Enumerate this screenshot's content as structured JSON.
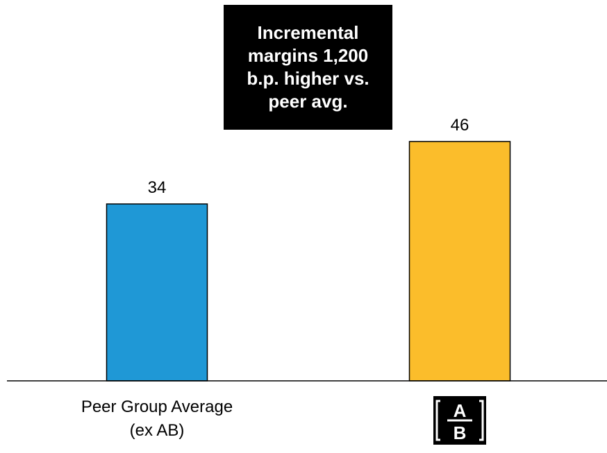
{
  "chart_data": {
    "type": "bar",
    "categories": [
      "Peer Group Average\n(ex AB)",
      "AB"
    ],
    "values": [
      34,
      46
    ],
    "data_labels": [
      "34",
      "46"
    ],
    "colors": [
      "#1f98d6",
      "#fbbd2b"
    ],
    "title": "",
    "xlabel": "",
    "ylabel": "",
    "ylim": [
      0,
      50
    ],
    "grid": false,
    "legend": "none"
  },
  "categories_display": {
    "peer_line1": "Peer Group Average",
    "peer_line2": "(ex AB)"
  },
  "logo": {
    "top_letter": "A",
    "bottom_letter": "B"
  },
  "callout": {
    "text": "Incremental margins 1,200 b.p. higher vs. peer avg."
  }
}
